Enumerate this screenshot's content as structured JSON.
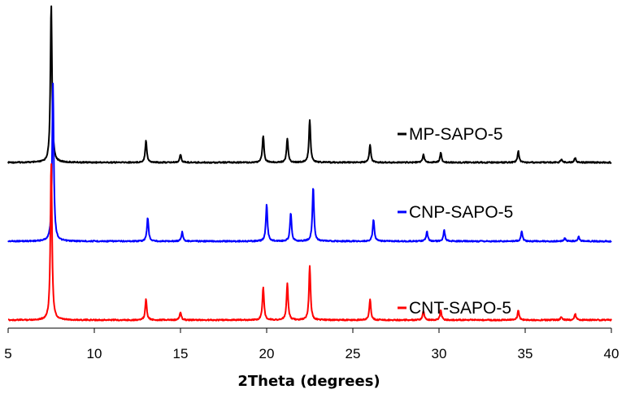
{
  "chart_data": {
    "type": "line",
    "title": "",
    "xlabel": "2Theta (degrees)",
    "ylabel": "",
    "xlim": [
      5,
      40
    ],
    "xticks": [
      5,
      10,
      15,
      20,
      25,
      30,
      35,
      40
    ],
    "grid": false,
    "legend_placement": "right, beside each trace",
    "series": [
      {
        "name": "MP-SAPO-5",
        "color": "#000000",
        "offset": 2,
        "peaks": [
          [
            7.5,
            1.0
          ],
          [
            13.0,
            0.14
          ],
          [
            15.0,
            0.05
          ],
          [
            19.8,
            0.17
          ],
          [
            21.2,
            0.15
          ],
          [
            22.5,
            0.27
          ],
          [
            26.0,
            0.11
          ],
          [
            29.1,
            0.05
          ],
          [
            30.1,
            0.06
          ],
          [
            34.6,
            0.07
          ],
          [
            37.1,
            0.02
          ],
          [
            37.9,
            0.03
          ]
        ]
      },
      {
        "name": "CNP-SAPO-5",
        "color": "#0000ff",
        "offset": 1,
        "peaks": [
          [
            7.6,
            1.0
          ],
          [
            13.1,
            0.15
          ],
          [
            15.1,
            0.06
          ],
          [
            20.0,
            0.23
          ],
          [
            21.4,
            0.18
          ],
          [
            22.7,
            0.34
          ],
          [
            26.2,
            0.14
          ],
          [
            29.3,
            0.06
          ],
          [
            30.3,
            0.07
          ],
          [
            34.8,
            0.06
          ],
          [
            37.3,
            0.02
          ],
          [
            38.1,
            0.03
          ]
        ]
      },
      {
        "name": "CNT-SAPO-5",
        "color": "#ff0000",
        "offset": 0,
        "peaks": [
          [
            7.5,
            1.0
          ],
          [
            13.0,
            0.13
          ],
          [
            15.0,
            0.05
          ],
          [
            19.8,
            0.21
          ],
          [
            21.2,
            0.23
          ],
          [
            22.5,
            0.34
          ],
          [
            26.0,
            0.13
          ],
          [
            29.1,
            0.06
          ],
          [
            30.1,
            0.06
          ],
          [
            34.6,
            0.06
          ],
          [
            37.1,
            0.02
          ],
          [
            37.9,
            0.04
          ]
        ]
      }
    ]
  }
}
